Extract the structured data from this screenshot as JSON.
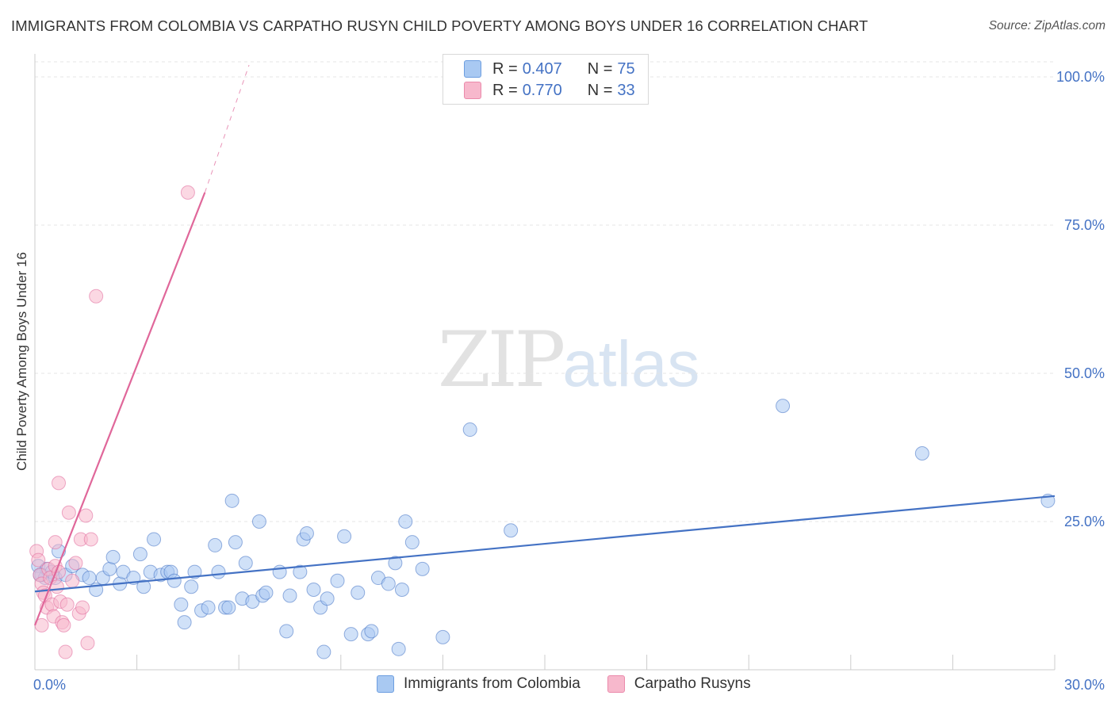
{
  "title": "IMMIGRANTS FROM COLOMBIA VS CARPATHO RUSYN CHILD POVERTY AMONG BOYS UNDER 16 CORRELATION CHART",
  "source": "Source: ZipAtlas.com",
  "watermark": {
    "zip": "ZIP",
    "atlas": "atlas"
  },
  "legend": {
    "rows": [
      {
        "r_label": "R = ",
        "r_value": "0.407",
        "n_label": "N = ",
        "n_value": "75",
        "color": "#a9c9f2"
      },
      {
        "r_label": "R = ",
        "r_value": "0.770",
        "n_label": "N = ",
        "n_value": "33",
        "color": "#f7b8cc"
      }
    ]
  },
  "chart_data": {
    "type": "scatter",
    "title": "IMMIGRANTS FROM COLOMBIA VS CARPATHO RUSYN CHILD POVERTY AMONG BOYS UNDER 16 CORRELATION CHART",
    "xlabel": "",
    "ylabel": "Child Poverty Among Boys Under 16",
    "xlim": [
      0,
      30
    ],
    "ylim": [
      0,
      102
    ],
    "x_tick_labels": [
      "0.0%",
      "30.0%"
    ],
    "y_ticks": [
      25,
      50,
      75,
      100
    ],
    "y_tick_labels": [
      "25.0%",
      "50.0%",
      "75.0%",
      "100.0%"
    ],
    "series": [
      {
        "name": "Immigrants from Colombia",
        "color": "#4472c4",
        "fill": "#a9c9f2",
        "trend": {
          "x": [
            0,
            30
          ],
          "y": [
            13.2,
            29.3
          ],
          "style": "solid"
        },
        "points": [
          [
            0.1,
            17.5
          ],
          [
            0.2,
            16.0
          ],
          [
            0.3,
            15.5
          ],
          [
            0.35,
            17.0
          ],
          [
            0.5,
            16.5
          ],
          [
            0.6,
            15.5
          ],
          [
            0.7,
            20.0
          ],
          [
            0.9,
            16.0
          ],
          [
            1.1,
            17.5
          ],
          [
            1.4,
            16.0
          ],
          [
            1.6,
            15.5
          ],
          [
            1.8,
            13.5
          ],
          [
            2.0,
            15.5
          ],
          [
            2.2,
            17.0
          ],
          [
            2.3,
            19.0
          ],
          [
            2.5,
            14.5
          ],
          [
            2.6,
            16.5
          ],
          [
            2.9,
            15.5
          ],
          [
            3.1,
            19.5
          ],
          [
            3.2,
            14.0
          ],
          [
            3.4,
            16.5
          ],
          [
            3.5,
            22.0
          ],
          [
            3.7,
            16.0
          ],
          [
            3.9,
            16.5
          ],
          [
            4.0,
            16.5
          ],
          [
            4.1,
            15.0
          ],
          [
            4.3,
            11.0
          ],
          [
            4.4,
            8.0
          ],
          [
            4.6,
            14.0
          ],
          [
            4.7,
            16.5
          ],
          [
            4.9,
            10.0
          ],
          [
            5.1,
            10.5
          ],
          [
            5.3,
            21.0
          ],
          [
            5.4,
            16.5
          ],
          [
            5.6,
            10.5
          ],
          [
            5.7,
            10.5
          ],
          [
            5.8,
            28.5
          ],
          [
            5.9,
            21.5
          ],
          [
            6.1,
            12.0
          ],
          [
            6.2,
            18.0
          ],
          [
            6.4,
            11.5
          ],
          [
            6.6,
            25.0
          ],
          [
            6.7,
            12.5
          ],
          [
            6.8,
            13.0
          ],
          [
            7.2,
            16.5
          ],
          [
            7.4,
            6.5
          ],
          [
            7.5,
            12.5
          ],
          [
            7.8,
            16.5
          ],
          [
            7.9,
            22.0
          ],
          [
            8.0,
            23.0
          ],
          [
            8.2,
            13.5
          ],
          [
            8.4,
            10.5
          ],
          [
            8.5,
            3.0
          ],
          [
            8.6,
            12.0
          ],
          [
            8.9,
            15.0
          ],
          [
            9.1,
            22.5
          ],
          [
            9.3,
            6.0
          ],
          [
            9.5,
            13.0
          ],
          [
            9.8,
            6.0
          ],
          [
            9.9,
            6.5
          ],
          [
            10.1,
            15.5
          ],
          [
            10.4,
            14.5
          ],
          [
            10.6,
            18.0
          ],
          [
            10.7,
            3.5
          ],
          [
            10.8,
            13.5
          ],
          [
            10.9,
            25.0
          ],
          [
            11.1,
            21.5
          ],
          [
            11.4,
            17.0
          ],
          [
            12.0,
            5.5
          ],
          [
            12.8,
            40.5
          ],
          [
            14.0,
            23.5
          ],
          [
            22.0,
            44.5
          ],
          [
            26.1,
            36.5
          ],
          [
            29.8,
            28.5
          ],
          [
            0.15,
            16.0
          ]
        ]
      },
      {
        "name": "Carpatho Rusyns",
        "color": "#e0679a",
        "fill": "#f7b8cc",
        "trend": {
          "x": [
            0,
            5.0
          ],
          "y": [
            7.5,
            80.5
          ],
          "style": "solid"
        },
        "trend_extension": {
          "x": [
            5.0,
            6.3
          ],
          "y": [
            80.5,
            102
          ],
          "style": "dashed"
        },
        "points": [
          [
            0.05,
            20.0
          ],
          [
            0.1,
            18.5
          ],
          [
            0.15,
            16.0
          ],
          [
            0.2,
            14.5
          ],
          [
            0.25,
            13.0
          ],
          [
            0.3,
            12.5
          ],
          [
            0.35,
            10.5
          ],
          [
            0.4,
            17.0
          ],
          [
            0.45,
            15.5
          ],
          [
            0.5,
            11.0
          ],
          [
            0.55,
            9.0
          ],
          [
            0.6,
            17.5
          ],
          [
            0.65,
            14.0
          ],
          [
            0.7,
            16.5
          ],
          [
            0.75,
            11.5
          ],
          [
            0.8,
            8.0
          ],
          [
            0.85,
            7.5
          ],
          [
            0.9,
            3.0
          ],
          [
            0.95,
            11.0
          ],
          [
            1.0,
            26.5
          ],
          [
            1.1,
            15.0
          ],
          [
            1.2,
            18.0
          ],
          [
            1.3,
            9.5
          ],
          [
            1.35,
            22.0
          ],
          [
            1.4,
            10.5
          ],
          [
            1.5,
            26.0
          ],
          [
            1.55,
            4.5
          ],
          [
            1.65,
            22.0
          ],
          [
            1.8,
            63.0
          ],
          [
            0.7,
            31.5
          ],
          [
            4.5,
            80.5
          ],
          [
            0.2,
            7.5
          ],
          [
            0.6,
            21.5
          ]
        ]
      }
    ]
  },
  "bottom_legend": [
    {
      "label": "Immigrants from Colombia",
      "color": "#a9c9f2"
    },
    {
      "label": "Carpatho Rusyns",
      "color": "#f7b8cc"
    }
  ]
}
